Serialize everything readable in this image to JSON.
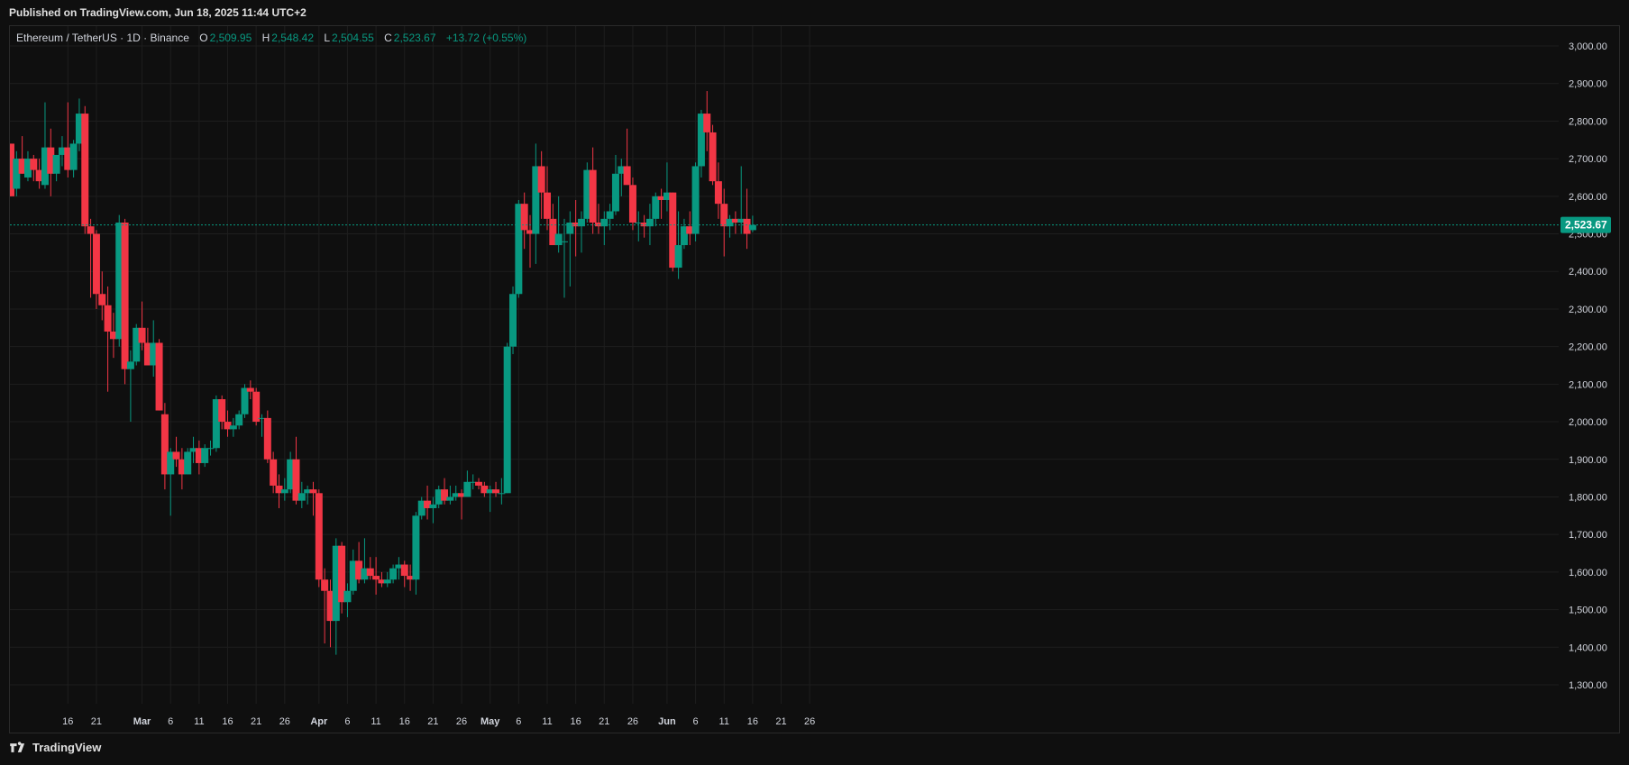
{
  "header": {
    "published": "Published on TradingView.com, Jun 18, 2025 11:44 UTC+2"
  },
  "legend": {
    "symbol": "Ethereum / TetherUS · 1D · Binance",
    "o_label": "O",
    "o_value": "2,509.95",
    "h_label": "H",
    "h_value": "2,548.42",
    "l_label": "L",
    "l_value": "2,504.55",
    "c_label": "C",
    "c_value": "2,523.67",
    "change": "+13.72 (+0.55%)"
  },
  "price_tag": "2,523.67",
  "footer": {
    "brand": "TradingView",
    "logo_icon": "tradingview-logo-icon"
  },
  "colors": {
    "up": "#089981",
    "down": "#f23645",
    "bg": "#0f0f0f",
    "grid": "#1e1e1e",
    "text": "#d1d4dc"
  },
  "chart_data": {
    "type": "candlestick",
    "y_axis": {
      "range": [
        1300,
        3000
      ],
      "ticks": [
        "3,000.00",
        "2,900.00",
        "2,800.00",
        "2,700.00",
        "2,600.00",
        "2,500.00",
        "2,400.00",
        "2,300.00",
        "2,200.00",
        "2,100.00",
        "2,000.00",
        "1,900.00",
        "1,800.00",
        "1,700.00",
        "1,600.00",
        "1,500.00",
        "1,400.00",
        "1,300.00"
      ],
      "tick_values": [
        3000,
        2900,
        2800,
        2700,
        2600,
        2500,
        2400,
        2300,
        2200,
        2100,
        2000,
        1900,
        1800,
        1700,
        1600,
        1500,
        1400,
        1300
      ]
    },
    "x_axis": {
      "ticks": [
        "16",
        "21",
        "Mar",
        "6",
        "11",
        "16",
        "21",
        "26",
        "Apr",
        "6",
        "11",
        "16",
        "21",
        "26",
        "May",
        "6",
        "11",
        "16",
        "21",
        "26",
        "Jun",
        "6",
        "11",
        "16",
        "21",
        "26"
      ],
      "tick_days": [
        16,
        21,
        29,
        34,
        39,
        44,
        49,
        54,
        60,
        65,
        70,
        75,
        80,
        85,
        90,
        95,
        100,
        105,
        110,
        115,
        121,
        126,
        131,
        136,
        141,
        146
      ]
    },
    "last_price": 2523.67,
    "grid": true,
    "candles": [
      [
        2740,
        2740,
        2600,
        2600
      ],
      [
        2620,
        2720,
        2600,
        2700
      ],
      [
        2700,
        2760,
        2660,
        2660
      ],
      [
        2650,
        2720,
        2640,
        2700
      ],
      [
        2700,
        2710,
        2640,
        2670
      ],
      [
        2670,
        2700,
        2620,
        2640
      ],
      [
        2630,
        2850,
        2620,
        2730
      ],
      [
        2730,
        2780,
        2600,
        2660
      ],
      [
        2660,
        2710,
        2640,
        2710
      ],
      [
        2710,
        2760,
        2680,
        2730
      ],
      [
        2730,
        2850,
        2650,
        2670
      ],
      [
        2670,
        2750,
        2650,
        2740
      ],
      [
        2740,
        2860,
        2720,
        2820
      ],
      [
        2820,
        2840,
        2500,
        2520
      ],
      [
        2520,
        2540,
        2330,
        2500
      ],
      [
        2500,
        2510,
        2300,
        2340
      ],
      [
        2340,
        2400,
        2270,
        2310
      ],
      [
        2310,
        2360,
        2080,
        2240
      ],
      [
        2240,
        2290,
        2170,
        2220
      ],
      [
        2220,
        2550,
        2200,
        2530
      ],
      [
        2530,
        2540,
        2100,
        2140
      ],
      [
        2140,
        2190,
        2000,
        2160
      ],
      [
        2160,
        2260,
        2150,
        2250
      ],
      [
        2250,
        2320,
        2190,
        2210
      ],
      [
        2210,
        2250,
        2150,
        2150
      ],
      [
        2150,
        2270,
        2120,
        2210
      ],
      [
        2210,
        2220,
        2030,
        2030
      ],
      [
        2020,
        2050,
        1820,
        1860
      ],
      [
        1860,
        1930,
        1750,
        1920
      ],
      [
        1920,
        1960,
        1880,
        1900
      ],
      [
        1900,
        1930,
        1820,
        1860
      ],
      [
        1860,
        1930,
        1860,
        1920
      ],
      [
        1920,
        1960,
        1890,
        1930
      ],
      [
        1930,
        1950,
        1860,
        1890
      ],
      [
        1890,
        1940,
        1880,
        1930
      ],
      [
        1930,
        1950,
        1910,
        1930
      ],
      [
        1930,
        2070,
        1920,
        2060
      ],
      [
        2060,
        2070,
        1980,
        2000
      ],
      [
        2000,
        2030,
        1960,
        1980
      ],
      [
        1980,
        2010,
        1960,
        1990
      ],
      [
        1990,
        2030,
        1980,
        2020
      ],
      [
        2020,
        2100,
        2010,
        2090
      ],
      [
        2090,
        2110,
        2060,
        2080
      ],
      [
        2080,
        2090,
        1990,
        2000
      ],
      [
        2010,
        2020,
        1960,
        2010
      ],
      [
        2010,
        2030,
        1890,
        1900
      ],
      [
        1900,
        1920,
        1810,
        1830
      ],
      [
        1830,
        1860,
        1770,
        1810
      ],
      [
        1810,
        1850,
        1790,
        1820
      ],
      [
        1820,
        1920,
        1810,
        1900
      ],
      [
        1900,
        1960,
        1780,
        1790
      ],
      [
        1790,
        1840,
        1770,
        1810
      ],
      [
        1810,
        1830,
        1780,
        1820
      ],
      [
        1820,
        1840,
        1750,
        1810
      ],
      [
        1810,
        1820,
        1560,
        1580
      ],
      [
        1580,
        1610,
        1410,
        1550
      ],
      [
        1550,
        1580,
        1400,
        1470
      ],
      [
        1470,
        1690,
        1380,
        1670
      ],
      [
        1670,
        1680,
        1490,
        1520
      ],
      [
        1520,
        1570,
        1480,
        1550
      ],
      [
        1550,
        1660,
        1540,
        1630
      ],
      [
        1630,
        1680,
        1570,
        1580
      ],
      [
        1580,
        1690,
        1570,
        1610
      ],
      [
        1610,
        1640,
        1580,
        1590
      ],
      [
        1590,
        1640,
        1540,
        1580
      ],
      [
        1580,
        1600,
        1560,
        1570
      ],
      [
        1570,
        1600,
        1560,
        1580
      ],
      [
        1580,
        1620,
        1570,
        1610
      ],
      [
        1610,
        1640,
        1580,
        1620
      ],
      [
        1620,
        1630,
        1560,
        1590
      ],
      [
        1590,
        1620,
        1550,
        1580
      ],
      [
        1580,
        1760,
        1540,
        1750
      ],
      [
        1750,
        1800,
        1740,
        1790
      ],
      [
        1790,
        1830,
        1740,
        1770
      ],
      [
        1770,
        1800,
        1730,
        1780
      ],
      [
        1780,
        1830,
        1770,
        1820
      ],
      [
        1820,
        1850,
        1780,
        1790
      ],
      [
        1790,
        1830,
        1780,
        1800
      ],
      [
        1800,
        1830,
        1790,
        1810
      ],
      [
        1810,
        1820,
        1740,
        1800
      ],
      [
        1800,
        1870,
        1800,
        1840
      ],
      [
        1840,
        1860,
        1820,
        1840
      ],
      [
        1840,
        1850,
        1820,
        1830
      ],
      [
        1830,
        1840,
        1800,
        1810
      ],
      [
        1810,
        1830,
        1760,
        1820
      ],
      [
        1820,
        1840,
        1800,
        1810
      ],
      [
        1810,
        1850,
        1780,
        1810
      ],
      [
        1810,
        2210,
        1810,
        2200
      ],
      [
        2200,
        2360,
        2180,
        2340
      ],
      [
        2340,
        2590,
        2330,
        2580
      ],
      [
        2580,
        2610,
        2460,
        2510
      ],
      [
        2510,
        2550,
        2410,
        2500
      ],
      [
        2500,
        2740,
        2420,
        2680
      ],
      [
        2680,
        2720,
        2540,
        2610
      ],
      [
        2610,
        2680,
        2510,
        2540
      ],
      [
        2540,
        2580,
        2480,
        2470
      ],
      [
        2470,
        2600,
        2450,
        2500
      ],
      [
        2480,
        2540,
        2330,
        2480
      ],
      [
        2500,
        2560,
        2360,
        2530
      ],
      [
        2530,
        2590,
        2440,
        2520
      ],
      [
        2520,
        2560,
        2450,
        2540
      ],
      [
        2540,
        2690,
        2530,
        2670
      ],
      [
        2670,
        2730,
        2500,
        2530
      ],
      [
        2530,
        2580,
        2500,
        2520
      ],
      [
        2520,
        2560,
        2470,
        2540
      ],
      [
        2540,
        2580,
        2510,
        2560
      ],
      [
        2560,
        2710,
        2550,
        2660
      ],
      [
        2660,
        2700,
        2600,
        2680
      ],
      [
        2680,
        2780,
        2640,
        2630
      ],
      [
        2630,
        2650,
        2510,
        2530
      ],
      [
        2530,
        2560,
        2480,
        2530
      ],
      [
        2530,
        2550,
        2490,
        2520
      ],
      [
        2520,
        2580,
        2470,
        2540
      ],
      [
        2540,
        2610,
        2520,
        2600
      ],
      [
        2600,
        2620,
        2540,
        2590
      ],
      [
        2590,
        2690,
        2560,
        2610
      ],
      [
        2610,
        2610,
        2400,
        2410
      ],
      [
        2410,
        2560,
        2380,
        2470
      ],
      [
        2470,
        2540,
        2460,
        2520
      ],
      [
        2520,
        2560,
        2470,
        2500
      ],
      [
        2500,
        2690,
        2480,
        2680
      ],
      [
        2680,
        2830,
        2650,
        2820
      ],
      [
        2820,
        2880,
        2720,
        2770
      ],
      [
        2770,
        2790,
        2630,
        2640
      ],
      [
        2640,
        2690,
        2540,
        2580
      ],
      [
        2580,
        2620,
        2440,
        2520
      ],
      [
        2520,
        2550,
        2490,
        2540
      ],
      [
        2540,
        2560,
        2500,
        2530
      ],
      [
        2530,
        2680,
        2500,
        2540
      ],
      [
        2540,
        2620,
        2460,
        2500
      ],
      [
        2509.95,
        2548.42,
        2504.55,
        2523.67
      ]
    ]
  }
}
